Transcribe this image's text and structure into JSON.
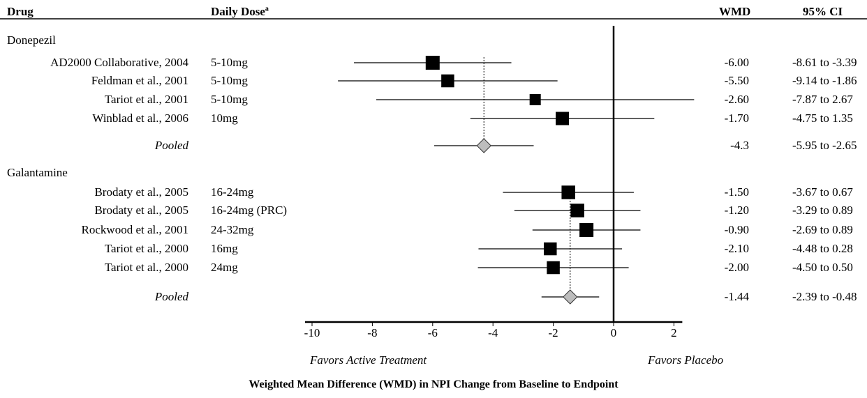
{
  "headers": {
    "drug": "Drug",
    "dose": "Daily Dose",
    "dose_superscript": "a",
    "wmd": "WMD",
    "ci": "95% CI"
  },
  "footer": {
    "favors_left": "Favors Active Treatment",
    "favors_right": "Favors Placebo"
  },
  "chart_data": {
    "type": "forest",
    "xlabel": "Weighted Mean Difference (WMD) in NPI Change from Baseline to Endpoint",
    "xlim": [
      -10,
      2
    ],
    "xticks": [
      "-10",
      "-8",
      "-6",
      "-4",
      "-2",
      "0",
      "2"
    ],
    "tick_values": [
      -10,
      -8,
      -6,
      -4,
      -2,
      0,
      2
    ],
    "groups": [
      {
        "name": "Donepezil",
        "studies": [
          {
            "label": "AD2000 Collaborative, 2004",
            "dose": "5-10mg",
            "wmd_text": "-6.00",
            "ci_text": "-8.61 to -3.39",
            "est": -6.0,
            "low": -8.61,
            "high": -3.39,
            "weight": 1.0
          },
          {
            "label": "Feldman et al., 2001",
            "dose": "5-10mg",
            "wmd_text": "-5.50",
            "ci_text": "-9.14 to -1.86",
            "est": -5.5,
            "low": -9.14,
            "high": -1.86,
            "weight": 0.85
          },
          {
            "label": "Tariot et al., 2001",
            "dose": "5-10mg",
            "wmd_text": "-2.60",
            "ci_text": "-7.87 to 2.67",
            "est": -2.6,
            "low": -7.87,
            "high": 2.67,
            "weight": 0.6
          },
          {
            "label": "Winblad et al., 2006",
            "dose": "10mg",
            "wmd_text": "-1.70",
            "ci_text": "-4.75 to 1.35",
            "est": -1.7,
            "low": -4.75,
            "high": 1.35,
            "weight": 0.9
          }
        ],
        "pooled": {
          "label": "Pooled",
          "wmd_text": "-4.3",
          "ci_text": "-5.95 to -2.65",
          "est": -4.3,
          "low": -5.95,
          "high": -2.65
        }
      },
      {
        "name": "Galantamine",
        "studies": [
          {
            "label": "Brodaty et al., 2005",
            "dose": "16-24mg",
            "wmd_text": "-1.50",
            "ci_text": "-3.67 to 0.67",
            "est": -1.5,
            "low": -3.67,
            "high": 0.67,
            "weight": 0.95
          },
          {
            "label": "Brodaty et al., 2005",
            "dose": "16-24mg (PRC)",
            "wmd_text": "-1.20",
            "ci_text": "-3.29 to 0.89",
            "est": -1.2,
            "low": -3.29,
            "high": 0.89,
            "weight": 0.95
          },
          {
            "label": "Rockwood et al., 2001",
            "dose": "24-32mg",
            "wmd_text": "-0.90",
            "ci_text": "-2.69 to 0.89",
            "est": -0.9,
            "low": -2.69,
            "high": 0.89,
            "weight": 1.0
          },
          {
            "label": "Tariot et al., 2000",
            "dose": "16mg",
            "wmd_text": "-2.10",
            "ci_text": "-4.48 to 0.28",
            "est": -2.1,
            "low": -4.48,
            "high": 0.28,
            "weight": 0.85
          },
          {
            "label": "Tariot et al., 2000",
            "dose": "24mg",
            "wmd_text": "-2.00",
            "ci_text": "-4.50 to 0.50",
            "est": -2.0,
            "low": -4.5,
            "high": 0.5,
            "weight": 0.85
          }
        ],
        "pooled": {
          "label": "Pooled",
          "wmd_text": "-1.44",
          "ci_text": "-2.39 to -0.48",
          "est": -1.44,
          "low": -2.39,
          "high": -0.48
        }
      }
    ],
    "marker_color": "#000000",
    "pooled_color": "#bdbdbd"
  }
}
